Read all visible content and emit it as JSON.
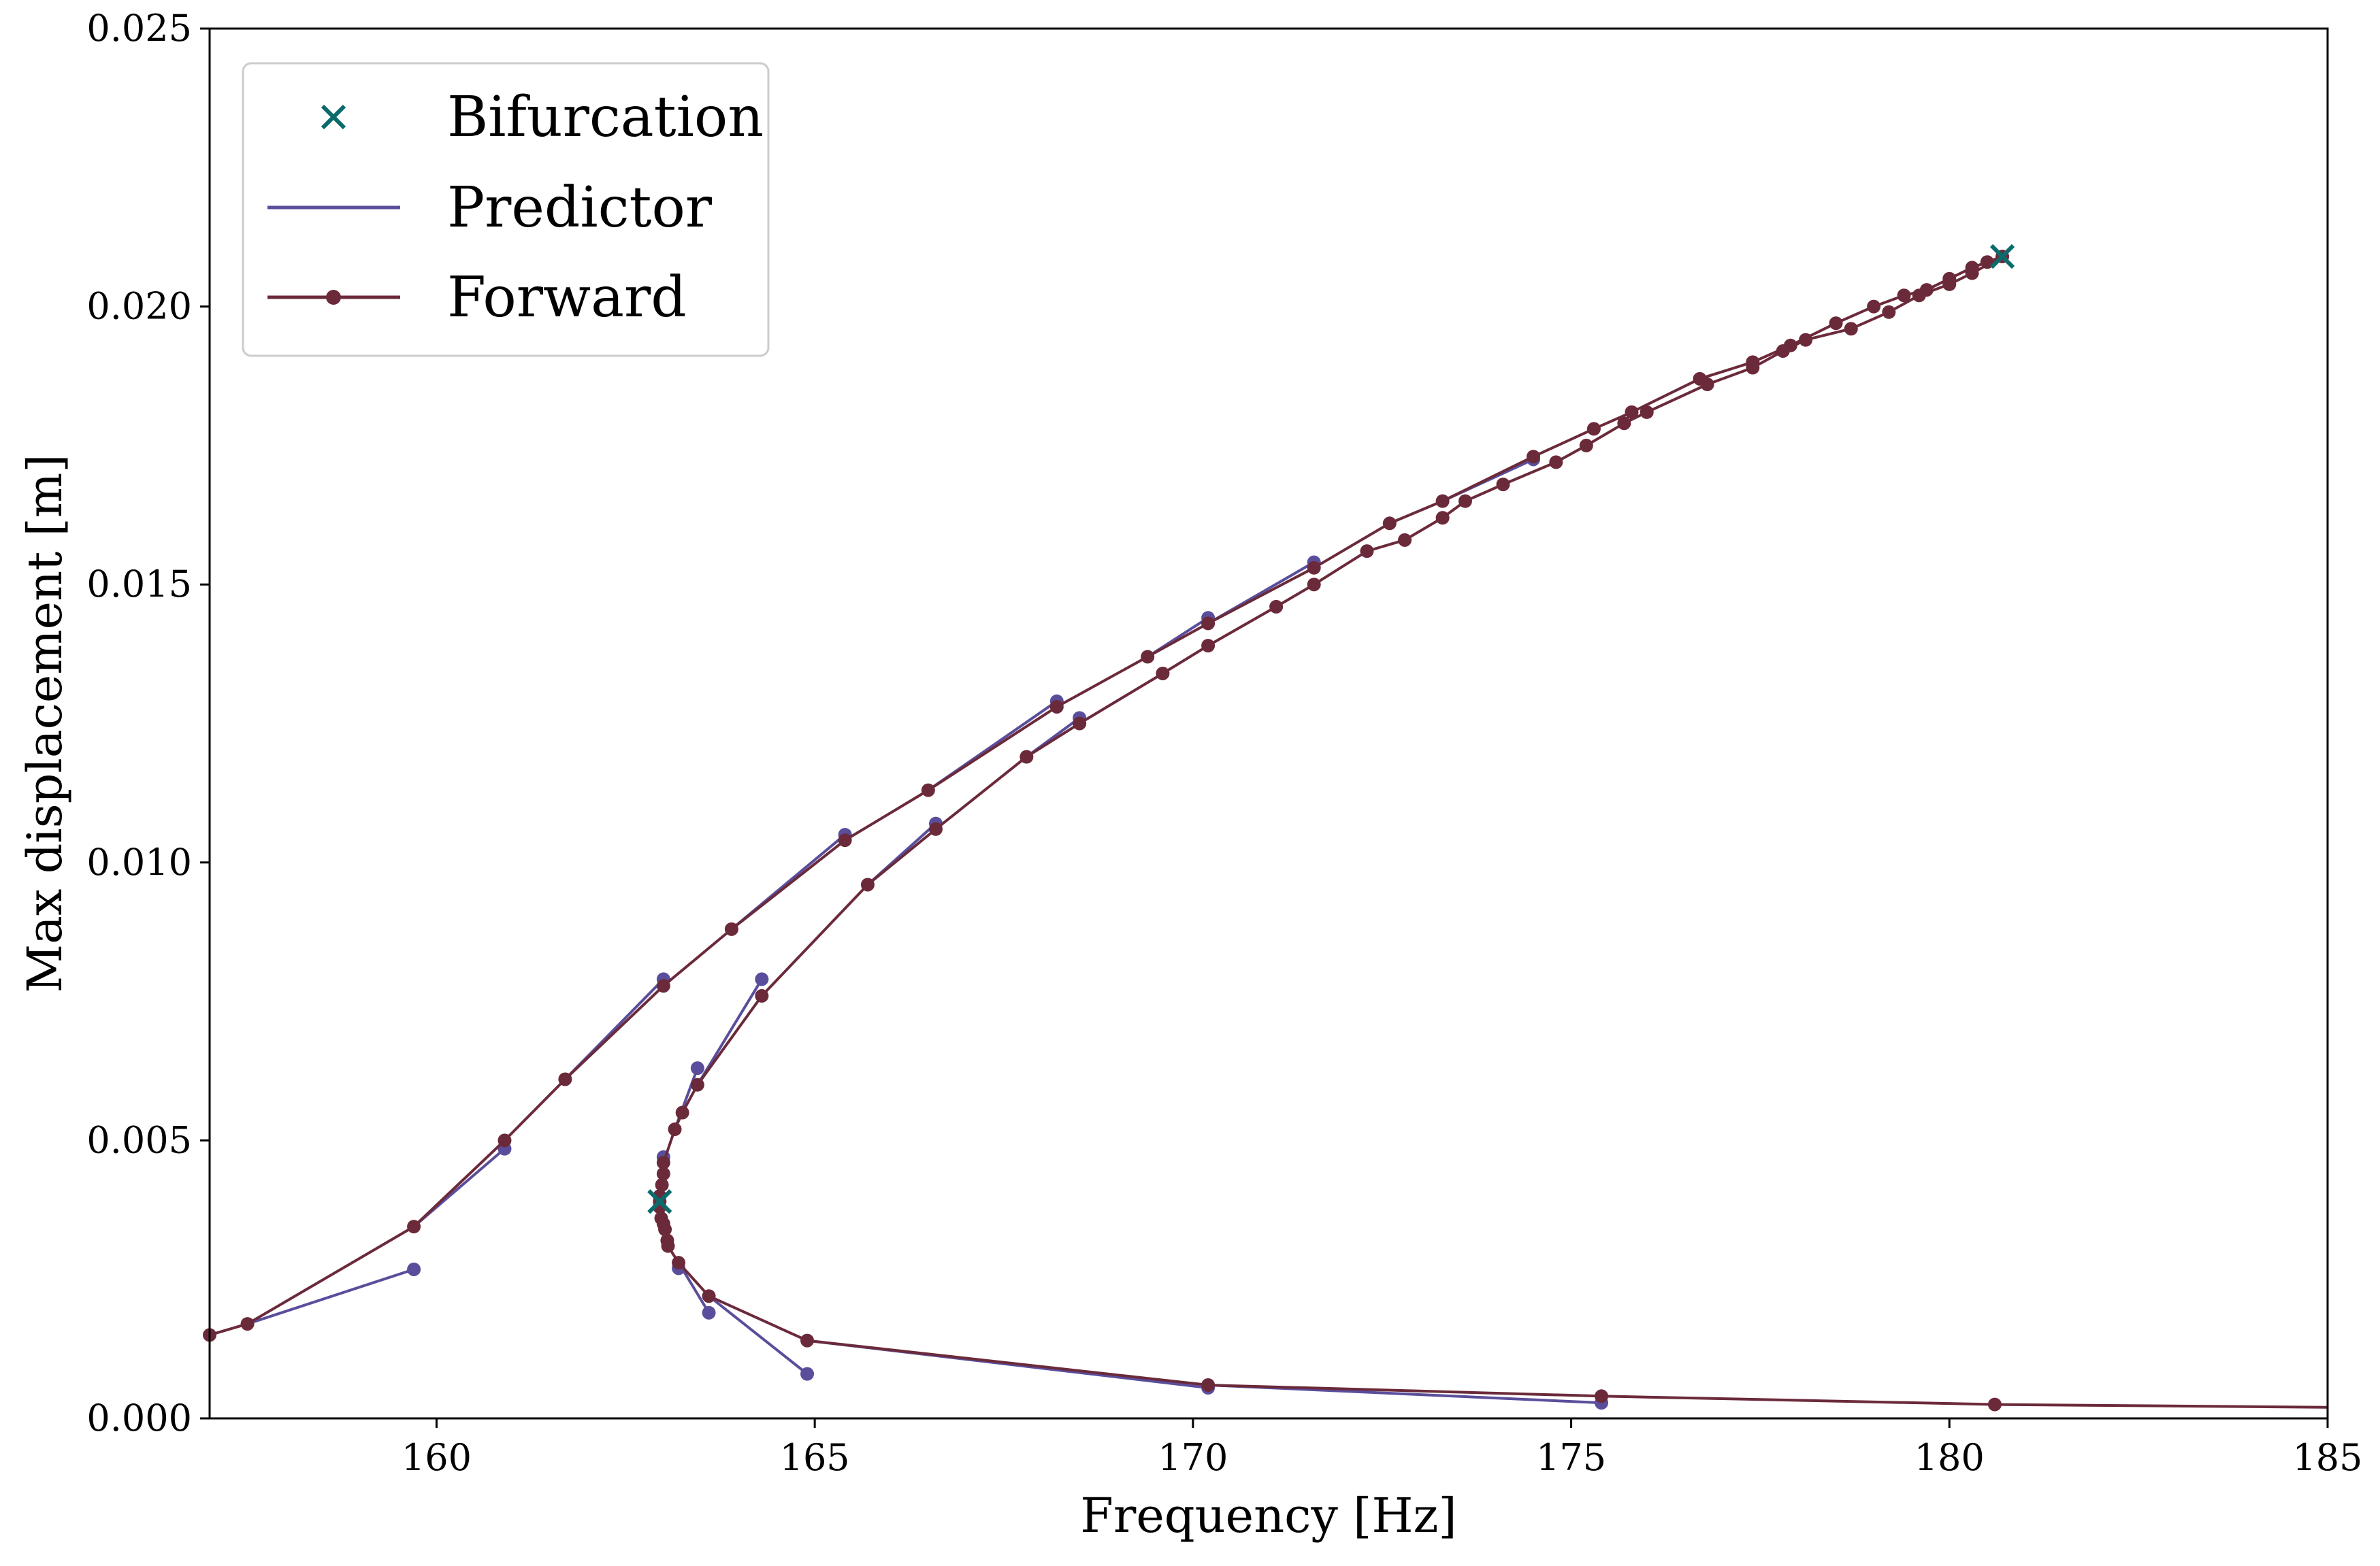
{
  "chart_data": {
    "type": "line",
    "title": "",
    "xlabel": "Frequency [Hz]",
    "ylabel": "Max displacement [m]",
    "xlim": [
      157,
      185
    ],
    "ylim": [
      0,
      0.025
    ],
    "x_ticks": [
      {
        "value": 160,
        "label": "160"
      },
      {
        "value": 165,
        "label": "165"
      },
      {
        "value": 170,
        "label": "170"
      },
      {
        "value": 175,
        "label": "175"
      },
      {
        "value": 180,
        "label": "180"
      },
      {
        "value": 185,
        "label": "185"
      }
    ],
    "y_ticks": [
      {
        "value": 0.0,
        "label": "0.000"
      },
      {
        "value": 0.005,
        "label": "0.005"
      },
      {
        "value": 0.01,
        "label": "0.010"
      },
      {
        "value": 0.015,
        "label": "0.015"
      },
      {
        "value": 0.02,
        "label": "0.020"
      },
      {
        "value": 0.025,
        "label": "0.025"
      }
    ],
    "grid": false,
    "legend_position": "top-left",
    "legend": [
      {
        "label": "Bifurcation",
        "marker": "x",
        "color": "#0b6b6b"
      },
      {
        "label": "Predictor",
        "marker": "line",
        "color": "#5a4e9c"
      },
      {
        "label": "Forward",
        "marker": "line-dot",
        "color": "#6b2a3a"
      }
    ],
    "series": [
      {
        "name": "Forward",
        "color": "#6b2a3a",
        "marker": "dot",
        "points": [
          [
            157.0,
            0.0015
          ],
          [
            157.5,
            0.0017
          ],
          [
            159.7,
            0.00345
          ],
          [
            160.9,
            0.005
          ],
          [
            161.7,
            0.0061
          ],
          [
            163.0,
            0.00778
          ],
          [
            163.9,
            0.0088
          ],
          [
            165.4,
            0.0104
          ],
          [
            166.5,
            0.0113
          ],
          [
            168.2,
            0.0128
          ],
          [
            169.4,
            0.0137
          ],
          [
            170.2,
            0.0143
          ],
          [
            171.6,
            0.0153
          ],
          [
            172.6,
            0.0161
          ],
          [
            173.3,
            0.0165
          ],
          [
            174.5,
            0.0173
          ],
          [
            175.3,
            0.0178
          ],
          [
            175.8,
            0.0181
          ],
          [
            176.7,
            0.0187
          ],
          [
            177.4,
            0.019
          ],
          [
            177.9,
            0.0193
          ],
          [
            178.5,
            0.0197
          ],
          [
            179.0,
            0.02
          ],
          [
            179.4,
            0.0202
          ],
          [
            179.7,
            0.0203
          ],
          [
            180.0,
            0.0205
          ],
          [
            180.3,
            0.0207
          ],
          [
            180.5,
            0.0208
          ],
          [
            180.7,
            0.0209
          ],
          [
            180.3,
            0.0206
          ],
          [
            180.0,
            0.0204
          ],
          [
            179.6,
            0.0202
          ],
          [
            179.2,
            0.0199
          ],
          [
            178.7,
            0.0196
          ],
          [
            178.1,
            0.0194
          ],
          [
            177.8,
            0.0192
          ],
          [
            177.4,
            0.0189
          ],
          [
            176.8,
            0.0186
          ],
          [
            176.0,
            0.0181
          ],
          [
            175.7,
            0.0179
          ],
          [
            175.2,
            0.0175
          ],
          [
            174.8,
            0.0172
          ],
          [
            174.1,
            0.0168
          ],
          [
            173.6,
            0.0165
          ],
          [
            173.3,
            0.0162
          ],
          [
            172.8,
            0.0158
          ],
          [
            172.3,
            0.0156
          ],
          [
            171.6,
            0.015
          ],
          [
            171.1,
            0.0146
          ],
          [
            170.2,
            0.0139
          ],
          [
            169.6,
            0.0134
          ],
          [
            168.5,
            0.0125
          ],
          [
            167.8,
            0.0119
          ],
          [
            166.6,
            0.0106
          ],
          [
            165.7,
            0.0096
          ],
          [
            164.3,
            0.0076
          ],
          [
            163.45,
            0.006
          ],
          [
            163.25,
            0.0055
          ],
          [
            163.15,
            0.0052
          ],
          [
            163.0,
            0.0046
          ],
          [
            163.0,
            0.0044
          ],
          [
            162.98,
            0.0042
          ],
          [
            162.95,
            0.004
          ],
          [
            162.95,
            0.0039
          ],
          [
            162.95,
            0.0038
          ],
          [
            162.97,
            0.0036
          ],
          [
            163.0,
            0.0035
          ],
          [
            163.02,
            0.0034
          ],
          [
            163.05,
            0.0032
          ],
          [
            163.06,
            0.0031
          ],
          [
            163.2,
            0.0028
          ],
          [
            163.6,
            0.0022
          ],
          [
            164.9,
            0.0014
          ],
          [
            170.2,
            0.0006
          ],
          [
            175.4,
            0.0004
          ],
          [
            180.6,
            0.00025
          ],
          [
            185.0,
            0.0002
          ]
        ]
      },
      {
        "name": "Predictor",
        "color": "#5a4e9c",
        "marker": "dot",
        "segments": [
          [
            [
              157.5,
              0.0017
            ],
            [
              159.7,
              0.00268
            ]
          ],
          [
            [
              159.7,
              0.00345
            ],
            [
              160.9,
              0.00485
            ]
          ],
          [
            [
              161.7,
              0.0061
            ],
            [
              163.0,
              0.0079
            ]
          ],
          [
            [
              163.9,
              0.0088
            ],
            [
              165.4,
              0.0105
            ]
          ],
          [
            [
              166.5,
              0.0113
            ],
            [
              168.2,
              0.0129
            ]
          ],
          [
            [
              169.4,
              0.0137
            ],
            [
              170.2,
              0.0144
            ]
          ],
          [
            [
              170.2,
              0.0143
            ],
            [
              171.6,
              0.0154
            ]
          ],
          [
            [
              173.3,
              0.0165
            ],
            [
              174.5,
              0.01725
            ]
          ],
          [
            [
              167.8,
              0.0119
            ],
            [
              168.5,
              0.0126
            ]
          ],
          [
            [
              165.7,
              0.0096
            ],
            [
              166.6,
              0.0107
            ]
          ],
          [
            [
              163.45,
              0.006
            ],
            [
              164.3,
              0.0079
            ]
          ],
          [
            [
              163.15,
              0.0052
            ],
            [
              163.45,
              0.0063
            ]
          ],
          [
            [
              163.02,
              0.0044
            ],
            [
              163.0,
              0.0047
            ]
          ],
          [
            [
              163.2,
              0.0028
            ],
            [
              163.2,
              0.0027
            ]
          ],
          [
            [
              163.2,
              0.0028
            ],
            [
              163.6,
              0.0019
            ]
          ],
          [
            [
              163.6,
              0.0022
            ],
            [
              164.9,
              0.0008
            ]
          ],
          [
            [
              164.9,
              0.0014
            ],
            [
              170.2,
              0.00055
            ]
          ],
          [
            [
              170.2,
              0.0006
            ],
            [
              175.4,
              0.00028
            ]
          ]
        ]
      }
    ],
    "bifurcations": [
      [
        180.7,
        0.0209
      ],
      [
        162.95,
        0.0039
      ]
    ]
  }
}
